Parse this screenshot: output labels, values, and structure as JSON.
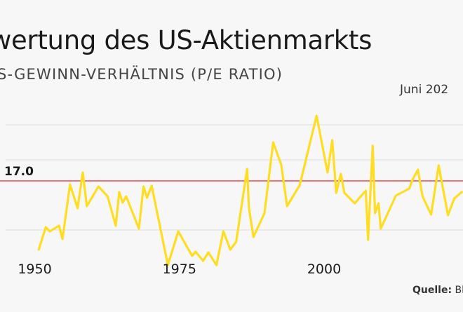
{
  "title": "wertung des US-Aktienmarkts",
  "subtitle": "S-GEWINN-VERHÄLTNIS (P/E RATIO)",
  "date_label": "Juni 202",
  "source_label": "Quelle:",
  "source_value": "Bl",
  "colors": {
    "line": "#ffdd22",
    "reference": "#e8484d",
    "grid": "#dddddd"
  },
  "chart_data": {
    "type": "line",
    "title": "wertung des US-Aktienmarkts",
    "subtitle": "S-GEWINN-VERHÄLTNIS (P/E RATIO)",
    "xlabel": "",
    "ylabel": "",
    "xlim": [
      1944,
      2024
    ],
    "ylim": [
      6,
      30
    ],
    "x_ticks": [
      1950,
      1975,
      2000
    ],
    "reference_line": {
      "value": 17.0,
      "label": "17.0"
    },
    "grid": true,
    "series": [
      {
        "points": [
          [
            1950.7,
            7.2
          ],
          [
            1951.9,
            10.4
          ],
          [
            1952.6,
            9.8
          ],
          [
            1954.2,
            10.6
          ],
          [
            1954.8,
            8.7
          ],
          [
            1956.1,
            16.5
          ],
          [
            1957.4,
            13.1
          ],
          [
            1958.3,
            18.2
          ],
          [
            1959.0,
            13.4
          ],
          [
            1961.0,
            16.2
          ],
          [
            1962.6,
            14.8
          ],
          [
            1964.0,
            10.6
          ],
          [
            1964.6,
            15.4
          ],
          [
            1965.2,
            13.9
          ],
          [
            1965.8,
            14.8
          ],
          [
            1968.0,
            10.2
          ],
          [
            1968.8,
            16.2
          ],
          [
            1969.4,
            14.6
          ],
          [
            1970.2,
            16.3
          ],
          [
            1973.0,
            5.0
          ],
          [
            1974.8,
            9.8
          ],
          [
            1977.2,
            6.3
          ],
          [
            1977.8,
            6.9
          ],
          [
            1979.1,
            5.6
          ],
          [
            1980.0,
            6.8
          ],
          [
            1981.4,
            5.0
          ],
          [
            1982.6,
            9.8
          ],
          [
            1983.8,
            7.2
          ],
          [
            1984.8,
            8.3
          ],
          [
            1986.7,
            18.7
          ],
          [
            1987.0,
            13.2
          ],
          [
            1987.8,
            9.0
          ],
          [
            1989.7,
            12.4
          ],
          [
            1991.2,
            22.5
          ],
          [
            1992.6,
            19.3
          ],
          [
            1993.6,
            13.4
          ],
          [
            1995.8,
            16.4
          ],
          [
            1998.7,
            26.3
          ],
          [
            2000.6,
            18.2
          ],
          [
            2001.4,
            22.8
          ],
          [
            2002.1,
            15.3
          ],
          [
            2002.9,
            18.0
          ],
          [
            2003.5,
            15.3
          ],
          [
            2005.3,
            13.8
          ],
          [
            2007.2,
            15.6
          ],
          [
            2007.6,
            8.6
          ],
          [
            2008.4,
            22.0
          ],
          [
            2008.8,
            12.4
          ],
          [
            2009.4,
            13.8
          ],
          [
            2009.8,
            10.2
          ],
          [
            2012.4,
            14.9
          ],
          [
            2014.7,
            15.9
          ],
          [
            2015.3,
            17.2
          ],
          [
            2016.2,
            18.6
          ],
          [
            2017.0,
            14.8
          ],
          [
            2018.5,
            12.2
          ],
          [
            2019.8,
            19.2
          ],
          [
            2021.4,
            12.1
          ],
          [
            2022.5,
            14.5
          ],
          [
            2023.8,
            15.4
          ]
        ]
      }
    ]
  }
}
